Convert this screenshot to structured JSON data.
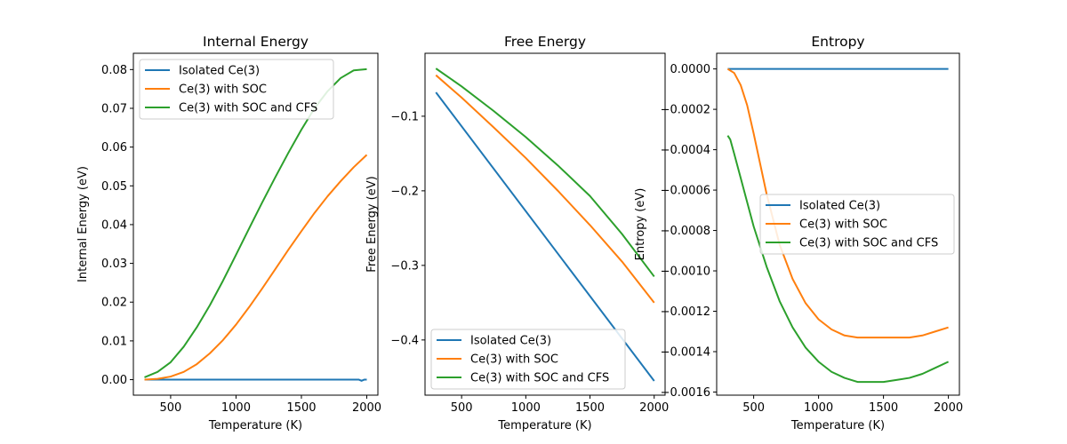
{
  "chart_data": [
    {
      "type": "line",
      "title": "Internal Energy",
      "xlabel": "Temperature (K)",
      "ylabel": "Internal Energy (eV)",
      "xlim": [
        215,
        2085
      ],
      "ylim": [
        -0.004,
        0.0842
      ],
      "xticks": [
        500,
        1000,
        1500,
        2000
      ],
      "xtick_labels": [
        "500",
        "1000",
        "1500",
        "2000"
      ],
      "yticks": [
        0.0,
        0.01,
        0.02,
        0.03,
        0.04,
        0.05,
        0.06,
        0.07,
        0.08
      ],
      "ytick_labels": [
        "0.00",
        "0.01",
        "0.02",
        "0.03",
        "0.04",
        "0.05",
        "0.06",
        "0.07",
        "0.08"
      ],
      "legend": "upper left",
      "grid": false,
      "series": [
        {
          "name": "Isolated Ce(3)",
          "color": "#1f77b4",
          "x": [
            300,
            500,
            800,
            1100,
            1400,
            1700,
            1940,
            1960,
            1980,
            2000
          ],
          "y": [
            0,
            0,
            0,
            0,
            0,
            0,
            0,
            -0.0003,
            0,
            0
          ]
        },
        {
          "name": "Ce(3) with SOC",
          "color": "#ff7f0e",
          "x": [
            300,
            400,
            500,
            600,
            700,
            800,
            900,
            1000,
            1100,
            1200,
            1300,
            1400,
            1500,
            1600,
            1700,
            1800,
            1900,
            2000
          ],
          "y": [
            0.0,
            0.0002,
            0.0008,
            0.002,
            0.004,
            0.0068,
            0.0102,
            0.0142,
            0.0187,
            0.0235,
            0.0285,
            0.0335,
            0.0383,
            0.043,
            0.0473,
            0.0512,
            0.0548,
            0.058
          ]
        },
        {
          "name": "Ce(3) with SOC and CFS",
          "color": "#2ca02c",
          "x": [
            300,
            400,
            500,
            600,
            700,
            800,
            900,
            1000,
            1100,
            1200,
            1300,
            1400,
            1500,
            1600,
            1700,
            1800,
            1900,
            2000
          ],
          "y": [
            0.0006,
            0.002,
            0.0045,
            0.0085,
            0.0135,
            0.0192,
            0.0255,
            0.0322,
            0.039,
            0.0457,
            0.0522,
            0.0585,
            0.0645,
            0.07,
            0.0744,
            0.0778,
            0.0798,
            0.0801
          ]
        }
      ]
    },
    {
      "type": "line",
      "title": "Free Energy",
      "xlabel": "Temperature (K)",
      "ylabel": "Free Energy (eV)",
      "xlim": [
        215,
        2085
      ],
      "ylim": [
        -0.474,
        -0.0156
      ],
      "xticks": [
        500,
        1000,
        1500,
        2000
      ],
      "xtick_labels": [
        "500",
        "1000",
        "1500",
        "2000"
      ],
      "yticks": [
        -0.1,
        -0.2,
        -0.3,
        -0.4
      ],
      "ytick_labels": [
        "−0.1",
        "−0.2",
        "−0.3",
        "−0.4"
      ],
      "legend": "lower left",
      "grid": false,
      "series": [
        {
          "name": "Isolated Ce(3)",
          "color": "#1f77b4",
          "x": [
            300,
            2000
          ],
          "y": [
            -0.068,
            -0.455
          ]
        },
        {
          "name": "Ce(3) with SOC",
          "color": "#ff7f0e",
          "x": [
            300,
            500,
            750,
            1000,
            1250,
            1500,
            1750,
            2000
          ],
          "y": [
            -0.045,
            -0.075,
            -0.115,
            -0.156,
            -0.2,
            -0.246,
            -0.295,
            -0.35
          ]
        },
        {
          "name": "Ce(3) with SOC and CFS",
          "color": "#2ca02c",
          "x": [
            300,
            500,
            750,
            1000,
            1250,
            1500,
            1750,
            2000
          ],
          "y": [
            -0.036,
            -0.06,
            -0.093,
            -0.128,
            -0.166,
            -0.207,
            -0.258,
            -0.315
          ]
        }
      ]
    },
    {
      "type": "line",
      "title": "Entropy",
      "xlabel": "Temperature (K)",
      "ylabel": "Entropy (eV)",
      "xlim": [
        215,
        2085
      ],
      "ylim": [
        -0.0016155,
        7.75e-05
      ],
      "xticks": [
        500,
        1000,
        1500,
        2000
      ],
      "xtick_labels": [
        "500",
        "1000",
        "1500",
        "2000"
      ],
      "yticks": [
        0.0,
        -0.0002,
        -0.0004,
        -0.0006,
        -0.0008,
        -0.001,
        -0.0012,
        -0.0014,
        -0.0016
      ],
      "ytick_labels": [
        "0.0000",
        "−0.0002",
        "−0.0004",
        "−0.0006",
        "−0.0008",
        "−0.0010",
        "−0.0012",
        "−0.0014",
        "−0.0016"
      ],
      "legend": "center right",
      "grid": false,
      "series": [
        {
          "name": "Isolated Ce(3)",
          "color": "#1f77b4",
          "x": [
            300,
            2000
          ],
          "y": [
            0.0,
            0.0
          ]
        },
        {
          "name": "Ce(3) with SOC",
          "color": "#ff7f0e",
          "x": [
            300,
            350,
            400,
            450,
            500,
            600,
            700,
            800,
            900,
            1000,
            1100,
            1200,
            1300,
            1400,
            1500,
            1600,
            1700,
            1800,
            1900,
            2000
          ],
          "y": [
            0.0,
            -2e-05,
            -8e-05,
            -0.00018,
            -0.00032,
            -0.00062,
            -0.00087,
            -0.00104,
            -0.00116,
            -0.00124,
            -0.00129,
            -0.00132,
            -0.00133,
            -0.00133,
            -0.00133,
            -0.00133,
            -0.00133,
            -0.00132,
            -0.0013,
            -0.00128
          ]
        },
        {
          "name": "Ce(3) with SOC and CFS",
          "color": "#2ca02c",
          "x": [
            300,
            320,
            350,
            400,
            450,
            500,
            600,
            700,
            800,
            900,
            1000,
            1100,
            1200,
            1300,
            1400,
            1500,
            1600,
            1700,
            1800,
            1900,
            2000
          ],
          "y": [
            -0.00033,
            -0.00035,
            -0.00042,
            -0.00054,
            -0.00066,
            -0.00078,
            -0.00098,
            -0.00115,
            -0.00128,
            -0.00138,
            -0.00145,
            -0.0015,
            -0.00153,
            -0.00155,
            -0.00155,
            -0.00155,
            -0.00154,
            -0.00153,
            -0.00151,
            -0.00148,
            -0.00145
          ]
        }
      ]
    }
  ]
}
